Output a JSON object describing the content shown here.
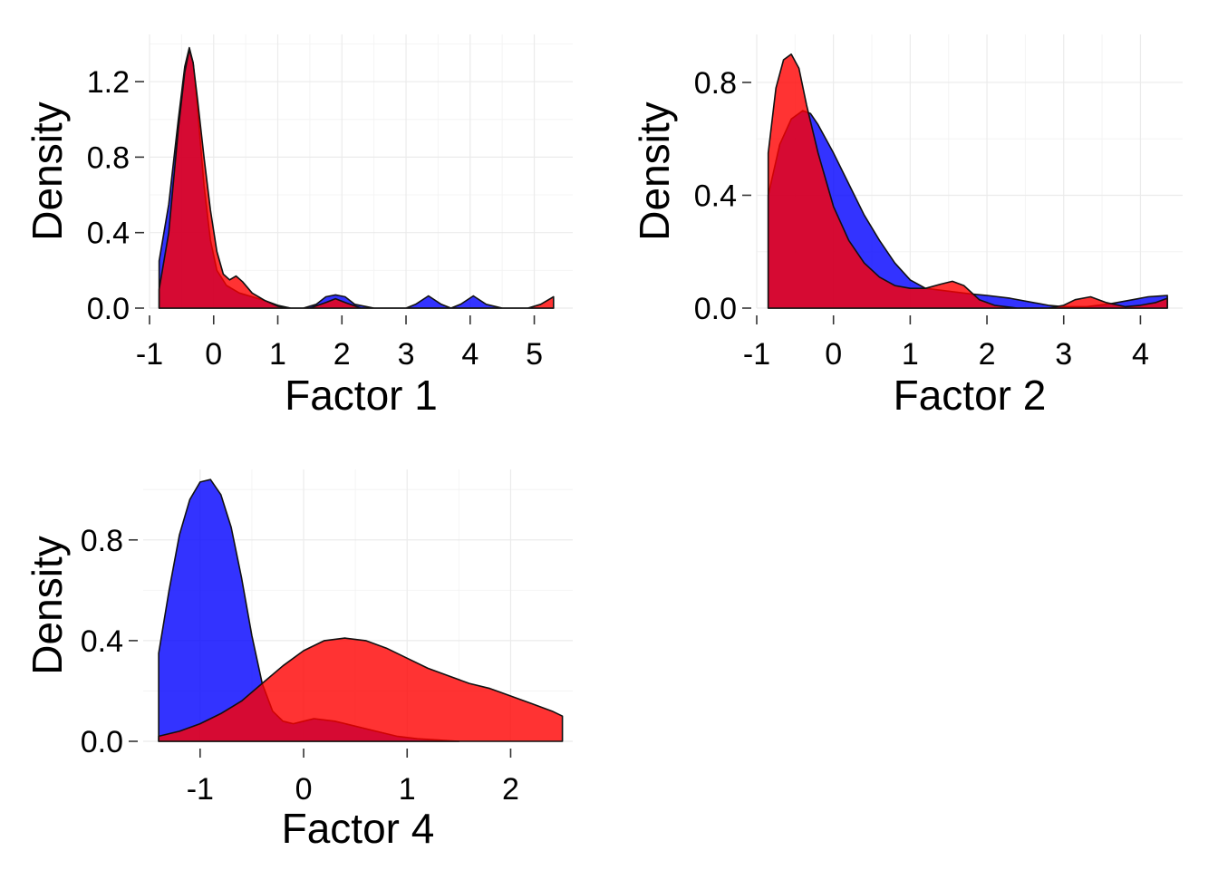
{
  "colors": {
    "series_a": "#0000ff",
    "series_b": "#ff0000",
    "fill_opacity": 0.8
  },
  "chart_data": [
    {
      "type": "area",
      "xlabel": "Factor 1",
      "ylabel": "Density",
      "xlim": [
        -1.0,
        5.6
      ],
      "ylim": [
        0.0,
        1.45
      ],
      "x_ticks": [
        -1,
        0,
        1,
        2,
        3,
        4,
        5
      ],
      "x_tick_labels": [
        "-1",
        "0",
        "1",
        "2",
        "3",
        "4",
        "5"
      ],
      "y_ticks": [
        0.0,
        0.4,
        0.8,
        1.2
      ],
      "y_tick_labels": [
        "0.0",
        "0.4",
        "0.8",
        "1.2"
      ],
      "grid": true,
      "legend": "none",
      "series": [
        {
          "color": "#0000ff",
          "x": [
            -0.85,
            -0.7,
            -0.55,
            -0.45,
            -0.38,
            -0.32,
            -0.25,
            -0.15,
            -0.05,
            0.05,
            0.2,
            0.4,
            0.6,
            0.8,
            1.0,
            1.2,
            1.4,
            1.6,
            1.75,
            1.9,
            2.05,
            2.2,
            2.5,
            2.8,
            3.0,
            3.15,
            3.35,
            3.55,
            3.7,
            3.85,
            4.05,
            4.25,
            4.5,
            4.8,
            5.1,
            5.3
          ],
          "y": [
            0.25,
            0.55,
            1.0,
            1.28,
            1.38,
            1.3,
            1.05,
            0.65,
            0.36,
            0.2,
            0.12,
            0.08,
            0.06,
            0.04,
            0.015,
            0.0,
            0.0,
            0.02,
            0.06,
            0.07,
            0.06,
            0.02,
            0.0,
            0.0,
            0.0,
            0.02,
            0.065,
            0.02,
            0.0,
            0.02,
            0.065,
            0.02,
            0.0,
            0.0,
            0.0,
            0.0
          ]
        },
        {
          "color": "#ff0000",
          "x": [
            -0.85,
            -0.7,
            -0.55,
            -0.45,
            -0.38,
            -0.32,
            -0.25,
            -0.15,
            -0.05,
            0.05,
            0.15,
            0.25,
            0.35,
            0.45,
            0.6,
            0.8,
            1.0,
            1.2,
            1.5,
            1.75,
            1.9,
            2.05,
            2.3,
            2.6,
            3.0,
            3.5,
            4.0,
            4.5,
            4.9,
            5.1,
            5.3
          ],
          "y": [
            0.1,
            0.4,
            0.95,
            1.25,
            1.37,
            1.3,
            1.1,
            0.8,
            0.52,
            0.3,
            0.18,
            0.15,
            0.17,
            0.14,
            0.08,
            0.04,
            0.01,
            0.0,
            0.0,
            0.03,
            0.05,
            0.03,
            0.0,
            0.0,
            0.0,
            0.0,
            0.0,
            0.0,
            0.0,
            0.02,
            0.06
          ]
        }
      ]
    },
    {
      "type": "area",
      "xlabel": "Factor 2",
      "ylabel": "Density",
      "xlim": [
        -1.0,
        4.55
      ],
      "ylim": [
        0.0,
        0.97
      ],
      "x_ticks": [
        -1,
        0,
        1,
        2,
        3,
        4
      ],
      "x_tick_labels": [
        "-1",
        "0",
        "1",
        "2",
        "3",
        "4"
      ],
      "y_ticks": [
        0.0,
        0.4,
        0.8
      ],
      "y_tick_labels": [
        "0.0",
        "0.4",
        "0.8"
      ],
      "grid": true,
      "legend": "none",
      "series": [
        {
          "color": "#0000ff",
          "x": [
            -0.85,
            -0.7,
            -0.55,
            -0.4,
            -0.3,
            -0.2,
            0.0,
            0.2,
            0.4,
            0.6,
            0.8,
            1.0,
            1.2,
            1.5,
            1.8,
            2.0,
            2.3,
            2.6,
            2.8,
            3.0,
            3.3,
            3.6,
            3.9,
            4.1,
            4.35
          ],
          "y": [
            0.4,
            0.58,
            0.67,
            0.7,
            0.69,
            0.65,
            0.55,
            0.44,
            0.33,
            0.24,
            0.16,
            0.1,
            0.07,
            0.06,
            0.05,
            0.045,
            0.035,
            0.02,
            0.01,
            0.005,
            0.005,
            0.015,
            0.03,
            0.04,
            0.045
          ]
        },
        {
          "color": "#ff0000",
          "x": [
            -0.85,
            -0.75,
            -0.65,
            -0.55,
            -0.45,
            -0.35,
            -0.2,
            0.0,
            0.2,
            0.4,
            0.6,
            0.8,
            1.0,
            1.2,
            1.4,
            1.55,
            1.7,
            1.9,
            2.1,
            2.4,
            2.8,
            3.0,
            3.15,
            3.35,
            3.55,
            3.8,
            4.0,
            4.2,
            4.35
          ],
          "y": [
            0.55,
            0.78,
            0.88,
            0.9,
            0.85,
            0.72,
            0.55,
            0.36,
            0.24,
            0.16,
            0.11,
            0.08,
            0.07,
            0.07,
            0.085,
            0.095,
            0.08,
            0.03,
            0.01,
            0.0,
            0.0,
            0.01,
            0.03,
            0.04,
            0.02,
            0.005,
            0.01,
            0.02,
            0.035
          ]
        }
      ]
    },
    {
      "type": "area",
      "xlabel": "Factor 4",
      "ylabel": "Density",
      "xlim": [
        -1.55,
        2.6
      ],
      "ylim": [
        0.0,
        1.08
      ],
      "x_ticks": [
        -1,
        0,
        1,
        2
      ],
      "x_tick_labels": [
        "-1",
        "0",
        "1",
        "2"
      ],
      "y_ticks": [
        0.0,
        0.4,
        0.8
      ],
      "y_tick_labels": [
        "0.0",
        "0.4",
        "0.8"
      ],
      "grid": true,
      "legend": "none",
      "series": [
        {
          "color": "#0000ff",
          "x": [
            -1.4,
            -1.3,
            -1.2,
            -1.1,
            -1.0,
            -0.9,
            -0.8,
            -0.7,
            -0.6,
            -0.5,
            -0.4,
            -0.3,
            -0.2,
            -0.1,
            0.0,
            0.1,
            0.3,
            0.5,
            0.7,
            0.9,
            1.1,
            1.3,
            1.5
          ],
          "y": [
            0.35,
            0.6,
            0.82,
            0.96,
            1.03,
            1.04,
            0.98,
            0.85,
            0.65,
            0.42,
            0.23,
            0.12,
            0.08,
            0.07,
            0.08,
            0.09,
            0.08,
            0.06,
            0.04,
            0.02,
            0.01,
            0.005,
            0.0
          ]
        },
        {
          "color": "#ff0000",
          "x": [
            -1.4,
            -1.2,
            -1.0,
            -0.8,
            -0.6,
            -0.4,
            -0.2,
            0.0,
            0.2,
            0.4,
            0.6,
            0.8,
            1.0,
            1.2,
            1.4,
            1.6,
            1.8,
            2.0,
            2.2,
            2.4,
            2.5
          ],
          "y": [
            0.02,
            0.04,
            0.07,
            0.11,
            0.16,
            0.23,
            0.3,
            0.36,
            0.4,
            0.41,
            0.4,
            0.37,
            0.33,
            0.29,
            0.26,
            0.23,
            0.21,
            0.18,
            0.15,
            0.12,
            0.1
          ]
        }
      ]
    }
  ]
}
